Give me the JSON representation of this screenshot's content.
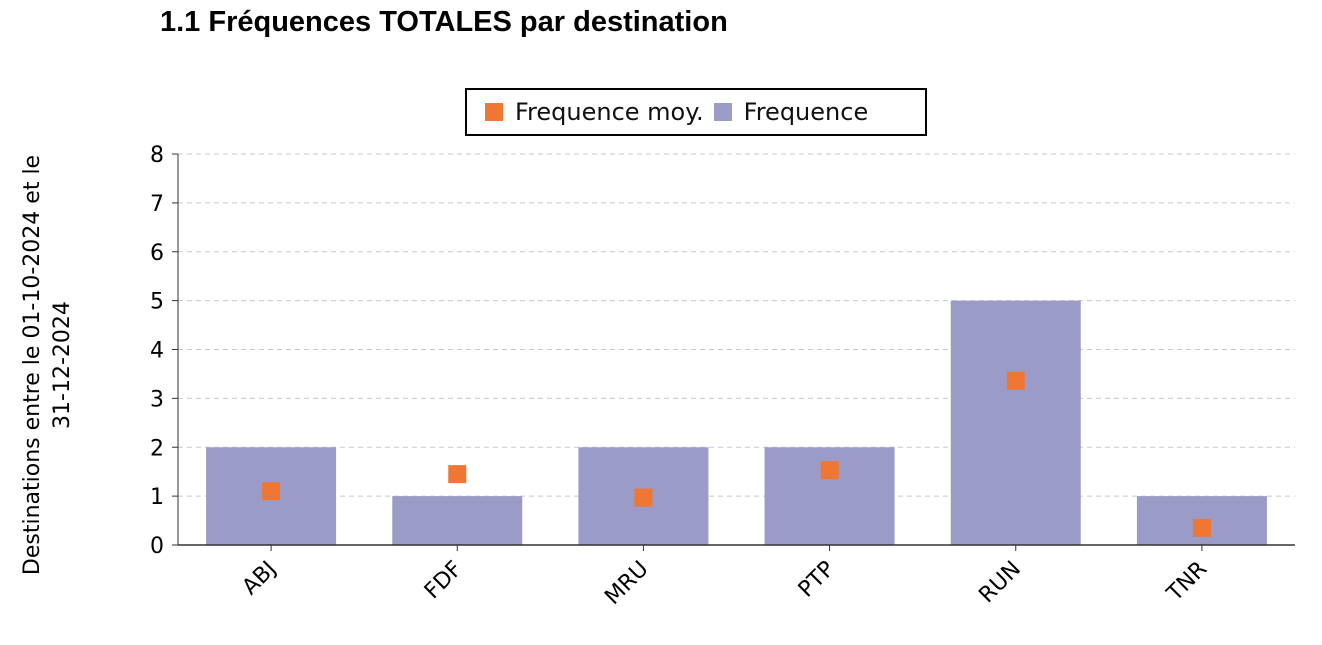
{
  "page": {
    "title": "1.1 Fréquences TOTALES par destination"
  },
  "chart_data": {
    "type": "bar",
    "title": "1.1 Fréquences TOTALES par destination",
    "ylabel_lines": [
      "Destinations entre le 01-10-2024 et le",
      "31-12-2024"
    ],
    "categories": [
      "ABJ",
      "FDF",
      "MRU",
      "PTP",
      "RUN",
      "TNR"
    ],
    "series": [
      {
        "name": "Frequence",
        "kind": "bar",
        "color": "#9b9bc8",
        "values": [
          2,
          1,
          2,
          2,
          5,
          1
        ]
      },
      {
        "name": "Frequence moy.",
        "kind": "marker",
        "color": "#f07634",
        "values": [
          1.1,
          1.45,
          0.97,
          1.53,
          3.36,
          0.35
        ]
      }
    ],
    "ylim": [
      0,
      8
    ],
    "yticks": [
      0,
      1,
      2,
      3,
      4,
      5,
      6,
      7,
      8
    ],
    "grid": true,
    "legend_position": "top-center"
  }
}
